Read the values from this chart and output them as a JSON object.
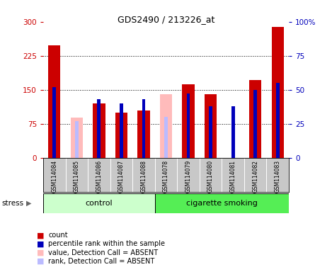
{
  "title": "GDS2490 / 213226_at",
  "samples": [
    "GSM114084",
    "GSM114085",
    "GSM114086",
    "GSM114087",
    "GSM114088",
    "GSM114078",
    "GSM114079",
    "GSM114080",
    "GSM114081",
    "GSM114082",
    "GSM114083"
  ],
  "count_values": [
    248,
    0,
    120,
    100,
    105,
    0,
    162,
    140,
    0,
    172,
    288
  ],
  "rank_values": [
    52,
    0,
    43,
    40,
    43,
    0,
    47,
    38,
    38,
    50,
    55
  ],
  "absent_value": [
    0,
    88,
    0,
    0,
    0,
    140,
    0,
    0,
    0,
    0,
    0
  ],
  "absent_rank": [
    0,
    27,
    0,
    0,
    0,
    30,
    0,
    0,
    0,
    0,
    0
  ],
  "is_absent": [
    0,
    1,
    0,
    0,
    0,
    1,
    0,
    0,
    0,
    0,
    0
  ],
  "ylim_left": [
    0,
    300
  ],
  "ylim_right": [
    0,
    100
  ],
  "yticks_left": [
    0,
    75,
    150,
    225,
    300
  ],
  "yticks_right": [
    0,
    25,
    50,
    75,
    100
  ],
  "color_count": "#cc0000",
  "color_rank": "#0000bb",
  "color_absent_val": "#ffbbbb",
  "color_absent_rank": "#bbbbff",
  "color_left_axis": "#cc0000",
  "color_right_axis": "#0000bb",
  "bar_width": 0.55,
  "rank_bar_width": 0.15,
  "control_count": 5,
  "smoking_count": 6,
  "group_label_control": "control",
  "group_label_smoking": "cigarette smoking",
  "group_color_control": "#ccffcc",
  "group_color_smoking": "#55ee55",
  "stress_label": "stress",
  "legend_items": [
    {
      "color": "#cc0000",
      "label": "count"
    },
    {
      "color": "#0000bb",
      "label": "percentile rank within the sample"
    },
    {
      "color": "#ffbbbb",
      "label": "value, Detection Call = ABSENT"
    },
    {
      "color": "#bbbbff",
      "label": "rank, Detection Call = ABSENT"
    }
  ],
  "tick_bg_color": "#c8c8c8"
}
